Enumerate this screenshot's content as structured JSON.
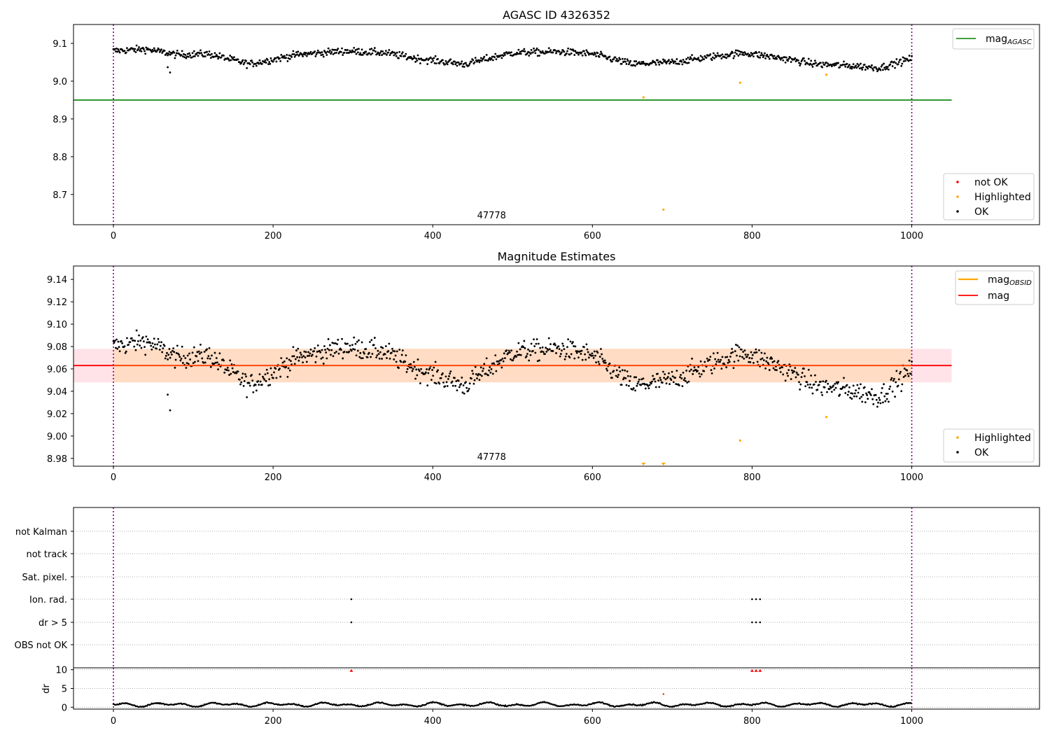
{
  "figure": {
    "panel1_title": "AGASC ID 4326352",
    "panel2_title": "Magnitude Estimates"
  },
  "chart_data": [
    {
      "type": "scatter",
      "title": "AGASC ID 4326352",
      "xlabel": "",
      "ylabel": "",
      "xlim": [
        -50,
        1160
      ],
      "ylim": [
        8.62,
        9.15
      ],
      "x_ticks": [
        "0",
        "200",
        "400",
        "600",
        "800",
        "1000"
      ],
      "y_ticks": [
        "8.7",
        "8.8",
        "8.9",
        "9.0",
        "9.1"
      ],
      "annotation": "47778",
      "vertical_lines": [
        0,
        1000
      ],
      "hline": {
        "label": "mag_AGASC",
        "y": 8.95,
        "x_range": [
          -50,
          1050
        ],
        "color": "#008000"
      },
      "ok_series": {
        "name": "OK",
        "color": "#000000",
        "n": 1000,
        "baseline": 9.063,
        "profile": [
          [
            0,
            9.08
          ],
          [
            40,
            9.085
          ],
          [
            80,
            9.07
          ],
          [
            120,
            9.072
          ],
          [
            170,
            9.045
          ],
          [
            230,
            9.07
          ],
          [
            290,
            9.08
          ],
          [
            340,
            9.075
          ],
          [
            380,
            9.06
          ],
          [
            440,
            9.045
          ],
          [
            500,
            9.075
          ],
          [
            560,
            9.078
          ],
          [
            600,
            9.072
          ],
          [
            650,
            9.045
          ],
          [
            700,
            9.05
          ],
          [
            750,
            9.065
          ],
          [
            790,
            9.075
          ],
          [
            840,
            9.06
          ],
          [
            880,
            9.045
          ],
          [
            930,
            9.04
          ],
          [
            960,
            9.035
          ],
          [
            1000,
            9.06
          ]
        ],
        "noise": 0.009,
        "outliers": [
          [
            68,
            9.037
          ],
          [
            71,
            9.023
          ]
        ]
      },
      "highlighted": {
        "name": "Highlighted",
        "color": "#ffa500",
        "points": [
          [
            664,
            8.957
          ],
          [
            689,
            8.66
          ],
          [
            785,
            8.996
          ],
          [
            893,
            9.017
          ]
        ]
      },
      "not_ok": {
        "name": "not OK",
        "color": "#ff0000",
        "points": []
      },
      "legend_top": [
        "mag_AGASC"
      ],
      "legend_bottom": [
        "not OK",
        "Highlighted",
        "OK"
      ],
      "legend_top_placement": "top-right",
      "legend_bottom_placement": "lower-right"
    },
    {
      "type": "scatter",
      "title": "Magnitude Estimates",
      "xlabel": "",
      "ylabel": "",
      "xlim": [
        -50,
        1160
      ],
      "ylim": [
        8.973,
        9.152
      ],
      "x_ticks": [
        "0",
        "200",
        "400",
        "600",
        "800",
        "1000"
      ],
      "y_ticks": [
        "8.98",
        "9.00",
        "9.02",
        "9.04",
        "9.06",
        "9.08",
        "9.10",
        "9.12",
        "9.14"
      ],
      "annotation": "47778",
      "vertical_lines": [
        0,
        1000
      ],
      "mag_line": {
        "label": "mag",
        "y": 9.063,
        "color": "#ff0000"
      },
      "band_outer": {
        "y_range": [
          9.048,
          9.078
        ],
        "x_range": [
          -50,
          1050
        ],
        "color": "#ffc0cb"
      },
      "band_inner": {
        "y_range": [
          9.048,
          9.078
        ],
        "x_range": [
          0,
          1000
        ],
        "color": "#ffdab9"
      },
      "obsid_line": {
        "label": "mag_OBSID",
        "color": "#ffa500"
      },
      "highlighted": {
        "name": "Highlighted",
        "color": "#ffa500",
        "points": [
          [
            785,
            8.996
          ],
          [
            893,
            9.017
          ]
        ],
        "clipped": [
          664,
          689
        ]
      },
      "legend_top": [
        "mag_OBSID",
        "mag"
      ],
      "legend_bottom": [
        "Highlighted",
        "OK"
      ],
      "legend_top_placement": "top-right",
      "legend_bottom_placement": "lower-right"
    },
    {
      "type": "scatter",
      "title": "",
      "xlabel": "",
      "ylabel": "",
      "xlim": [
        -50,
        1160
      ],
      "categories": [
        "not Kalman",
        "not track",
        "Sat. pixel.",
        "Ion. rad.",
        "dr > 5",
        "OBS not OK"
      ],
      "flag_points": {
        "Ion. rad.": [
          298,
          800,
          805,
          810
        ],
        "dr > 5": [
          298,
          800,
          805,
          810
        ]
      },
      "vertical_lines": [
        0,
        1000
      ]
    },
    {
      "type": "line",
      "title": "",
      "xlabel": "",
      "ylabel": "dr",
      "xlim": [
        -50,
        1160
      ],
      "ylim": [
        -0.5,
        10.5
      ],
      "x_ticks": [
        "0",
        "200",
        "400",
        "600",
        "800",
        "1000"
      ],
      "y_ticks": [
        "0",
        "5",
        "10"
      ],
      "vertical_lines": [
        0,
        1000
      ],
      "red_points": [
        [
          298,
          9.8
        ],
        [
          800,
          9.8
        ],
        [
          805,
          9.8
        ],
        [
          810,
          9.8
        ],
        [
          689,
          3.5
        ]
      ]
    }
  ]
}
